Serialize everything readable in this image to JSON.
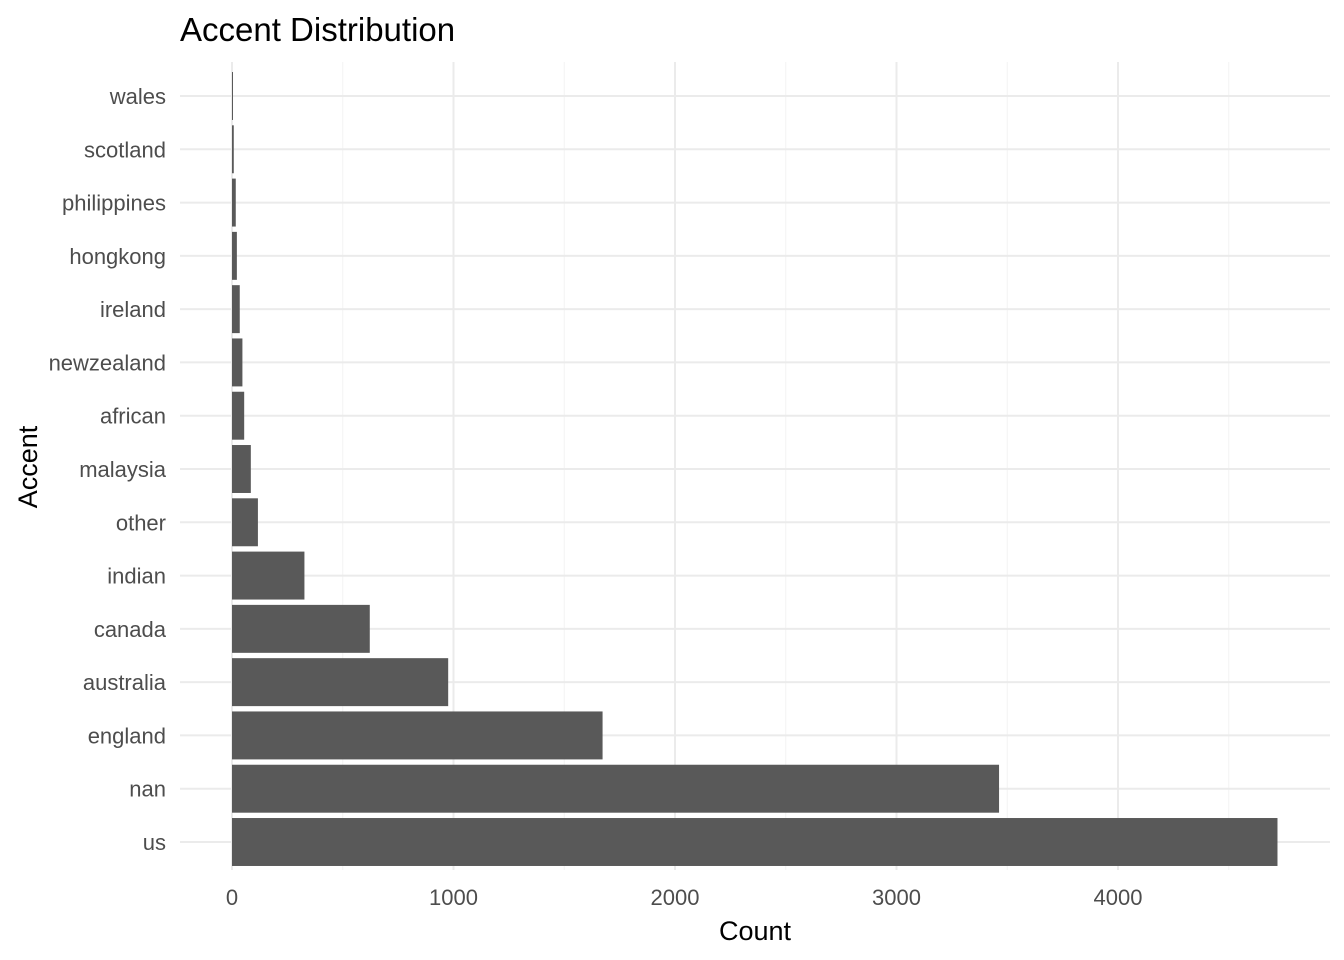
{
  "chart_data": {
    "type": "bar",
    "orientation": "horizontal",
    "title": "Accent Distribution",
    "xlabel": "Count",
    "ylabel": "Accent",
    "categories": [
      "us",
      "nan",
      "england",
      "australia",
      "canada",
      "indian",
      "other",
      "malaysia",
      "african",
      "newzealand",
      "ireland",
      "hongkong",
      "philippines",
      "scotland",
      "wales"
    ],
    "values": [
      4720,
      3463,
      1673,
      976,
      622,
      327,
      117,
      85,
      55,
      47,
      35,
      22,
      17,
      8,
      4
    ],
    "xlim": [
      0,
      4720
    ],
    "x_ticks": [
      0,
      1000,
      2000,
      3000,
      4000
    ],
    "x_tick_labels": [
      "0",
      "1000",
      "2000",
      "3000",
      "4000"
    ],
    "grid": true,
    "bar_color": "#595959"
  }
}
